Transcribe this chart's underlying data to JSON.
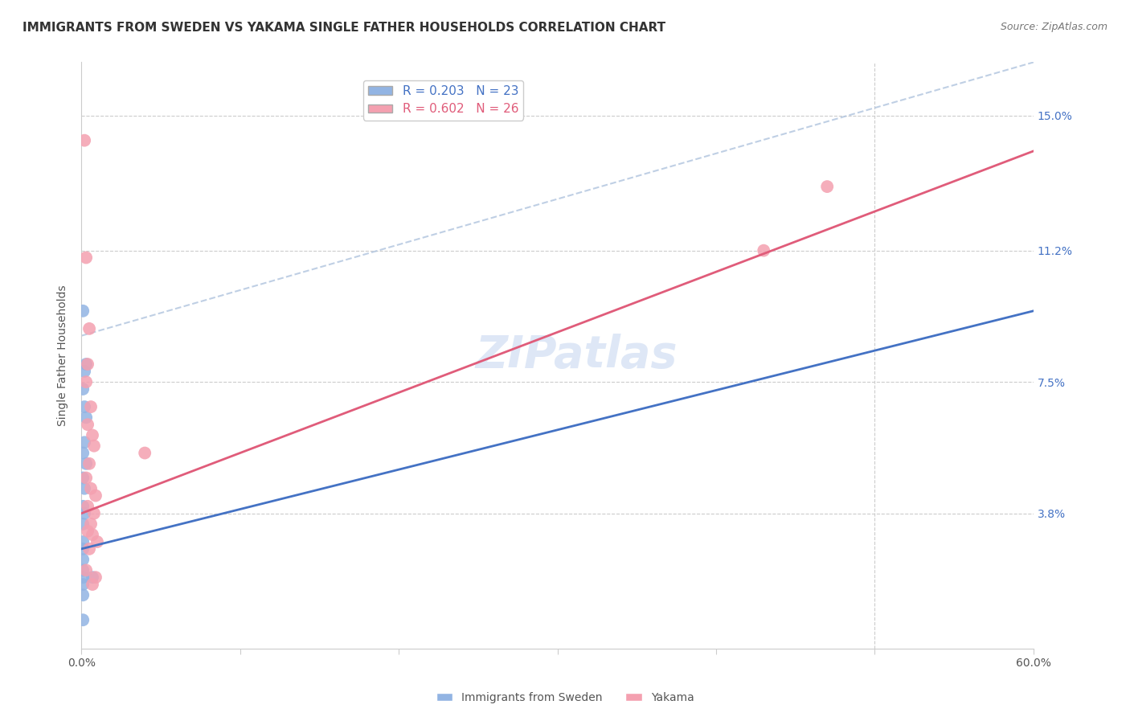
{
  "title": "IMMIGRANTS FROM SWEDEN VS YAKAMA SINGLE FATHER HOUSEHOLDS CORRELATION CHART",
  "source": "Source: ZipAtlas.com",
  "ylabel": "Single Father Households",
  "xlim": [
    0,
    0.6
  ],
  "ylim": [
    0,
    0.165
  ],
  "yticks": [
    0.038,
    0.075,
    0.112,
    0.15
  ],
  "ytick_labels": [
    "3.8%",
    "7.5%",
    "11.2%",
    "15.0%"
  ],
  "xtick_positions": [
    0.0,
    0.1,
    0.2,
    0.3,
    0.4,
    0.5,
    0.6
  ],
  "xtick_labels": [
    "0.0%",
    "",
    "",
    "",
    "",
    "",
    "60.0%"
  ],
  "watermark": "ZIPatlas",
  "blue_R": 0.203,
  "blue_N": 23,
  "pink_R": 0.602,
  "pink_N": 26,
  "blue_label": "Immigrants from Sweden",
  "pink_label": "Yakama",
  "blue_color": "#92B4E3",
  "pink_color": "#F4A0B0",
  "blue_line_color": "#4472C4",
  "pink_line_color": "#E05C7A",
  "blue_scatter": [
    [
      0.001,
      0.095
    ],
    [
      0.003,
      0.08
    ],
    [
      0.002,
      0.078
    ],
    [
      0.001,
      0.073
    ],
    [
      0.002,
      0.068
    ],
    [
      0.003,
      0.065
    ],
    [
      0.002,
      0.058
    ],
    [
      0.001,
      0.055
    ],
    [
      0.003,
      0.052
    ],
    [
      0.001,
      0.048
    ],
    [
      0.002,
      0.045
    ],
    [
      0.001,
      0.04
    ],
    [
      0.002,
      0.038
    ],
    [
      0.001,
      0.035
    ],
    [
      0.001,
      0.03
    ],
    [
      0.001,
      0.028
    ],
    [
      0.001,
      0.025
    ],
    [
      0.001,
      0.022
    ],
    [
      0.001,
      0.02
    ],
    [
      0.001,
      0.018
    ],
    [
      0.001,
      0.015
    ],
    [
      0.007,
      0.02
    ],
    [
      0.001,
      0.008
    ]
  ],
  "pink_scatter": [
    [
      0.002,
      0.143
    ],
    [
      0.003,
      0.11
    ],
    [
      0.005,
      0.09
    ],
    [
      0.004,
      0.08
    ],
    [
      0.003,
      0.075
    ],
    [
      0.006,
      0.068
    ],
    [
      0.004,
      0.063
    ],
    [
      0.007,
      0.06
    ],
    [
      0.008,
      0.057
    ],
    [
      0.005,
      0.052
    ],
    [
      0.003,
      0.048
    ],
    [
      0.006,
      0.045
    ],
    [
      0.009,
      0.043
    ],
    [
      0.004,
      0.04
    ],
    [
      0.008,
      0.038
    ],
    [
      0.006,
      0.035
    ],
    [
      0.004,
      0.033
    ],
    [
      0.007,
      0.032
    ],
    [
      0.01,
      0.03
    ],
    [
      0.005,
      0.028
    ],
    [
      0.04,
      0.055
    ],
    [
      0.003,
      0.022
    ],
    [
      0.009,
      0.02
    ],
    [
      0.007,
      0.018
    ],
    [
      0.47,
      0.13
    ],
    [
      0.43,
      0.112
    ]
  ],
  "blue_line_x": [
    0.0,
    0.6
  ],
  "blue_line_y": [
    0.028,
    0.095
  ],
  "pink_line_x": [
    0.0,
    0.6
  ],
  "pink_line_y": [
    0.038,
    0.14
  ],
  "dash_line_x": [
    0.0,
    0.6
  ],
  "dash_line_y": [
    0.088,
    0.165
  ],
  "title_fontsize": 11,
  "axis_label_fontsize": 10,
  "tick_fontsize": 10,
  "legend_fontsize": 11,
  "watermark_fontsize": 40
}
